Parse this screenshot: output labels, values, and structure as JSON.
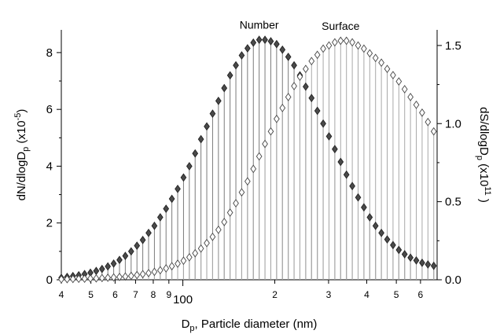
{
  "chart_data": {
    "type": "scatter",
    "subtype": "diamond-markers-with-drop-lines",
    "x_scale": "log",
    "xlim": [
      40,
      680
    ],
    "x_unit": "nm",
    "xlabel_main": "D",
    "xlabel_sub": "p",
    "xlabel_rest": ", Particle diameter (nm)",
    "x_ticks": [
      {
        "value": 40,
        "label": "4"
      },
      {
        "value": 50,
        "label": "5"
      },
      {
        "value": 60,
        "label": "6"
      },
      {
        "value": 70,
        "label": "7"
      },
      {
        "value": 80,
        "label": "8"
      },
      {
        "value": 90,
        "label": "9"
      },
      {
        "value": 100,
        "label": "100"
      },
      {
        "value": 200,
        "label": "2"
      },
      {
        "value": 300,
        "label": "3"
      },
      {
        "value": 400,
        "label": "4"
      },
      {
        "value": 500,
        "label": "5"
      },
      {
        "value": 600,
        "label": "6"
      }
    ],
    "ylim_left": [
      0,
      8.8
    ],
    "ylim_right": [
      0,
      1.6
    ],
    "y_left_ticks": [
      "0",
      "2",
      "4",
      "6",
      "8"
    ],
    "y_right_ticks": [
      "0.0",
      "0.5",
      "1.0",
      "1.5"
    ],
    "ylabel_left": {
      "a": "dN/dlogD",
      "sub": "p",
      "b": " (x10",
      "sup": "-5",
      "c": ")"
    },
    "ylabel_right": {
      "a": "dS/dlogD",
      "sub": "p",
      "b": " (x10",
      "sup": "11",
      "c": " )"
    },
    "grid": false,
    "series": [
      {
        "name": "Number",
        "axis": "left",
        "marker": "filled-diamond",
        "color": "#444444",
        "x": [
          40.0,
          41.79,
          43.66,
          45.62,
          47.67,
          49.81,
          52.04,
          54.37,
          56.81,
          59.36,
          62.02,
          64.8,
          67.71,
          70.75,
          73.92,
          77.23,
          80.7,
          84.32,
          88.1,
          92.05,
          96.18,
          100.5,
          105.0,
          109.71,
          114.63,
          119.77,
          125.14,
          130.76,
          136.62,
          142.75,
          149.15,
          155.84,
          162.83,
          170.14,
          177.77,
          185.74,
          194.07,
          202.78,
          211.87,
          221.38,
          231.31,
          241.68,
          252.52,
          263.85,
          275.68,
          288.05,
          300.97,
          314.47,
          328.57,
          343.31,
          358.71,
          374.8,
          391.61,
          409.18,
          427.53,
          446.71,
          466.74,
          487.68,
          509.55,
          532.41,
          556.29,
          581.24,
          607.31,
          634.55,
          663.01
        ],
        "y": [
          0.07,
          0.1,
          0.13,
          0.16,
          0.2,
          0.25,
          0.31,
          0.38,
          0.47,
          0.57,
          0.7,
          0.84,
          1.0,
          1.2,
          1.4,
          1.65,
          1.9,
          2.2,
          2.5,
          2.85,
          3.2,
          3.6,
          4.0,
          4.45,
          4.95,
          5.4,
          5.85,
          6.3,
          6.75,
          7.2,
          7.55,
          7.9,
          8.15,
          8.35,
          8.45,
          8.45,
          8.4,
          8.3,
          8.1,
          7.85,
          7.55,
          7.2,
          6.8,
          6.4,
          5.95,
          5.5,
          5.05,
          4.6,
          4.15,
          3.7,
          3.3,
          2.9,
          2.55,
          2.2,
          1.9,
          1.65,
          1.42,
          1.22,
          1.05,
          0.9,
          0.78,
          0.68,
          0.6,
          0.54,
          0.49
        ]
      },
      {
        "name": "Surface",
        "axis": "right",
        "marker": "open-diamond",
        "color": "#444444",
        "x": [
          40.0,
          41.79,
          43.66,
          45.62,
          47.67,
          49.81,
          52.04,
          54.37,
          56.81,
          59.36,
          62.02,
          64.8,
          67.71,
          70.75,
          73.92,
          77.23,
          80.7,
          84.32,
          88.1,
          92.05,
          96.18,
          100.5,
          105.0,
          109.71,
          114.63,
          119.77,
          125.14,
          130.76,
          136.62,
          142.75,
          149.15,
          155.84,
          162.83,
          170.14,
          177.77,
          185.74,
          194.07,
          202.78,
          211.87,
          221.38,
          231.31,
          241.68,
          252.52,
          263.85,
          275.68,
          288.05,
          300.97,
          314.47,
          328.57,
          343.31,
          358.71,
          374.8,
          391.61,
          409.18,
          427.53,
          446.71,
          466.74,
          487.68,
          509.55,
          532.41,
          556.29,
          581.24,
          607.31,
          634.55,
          663.01
        ],
        "y": [
          0.003,
          0.004,
          0.005,
          0.006,
          0.007,
          0.008,
          0.009,
          0.011,
          0.013,
          0.015,
          0.018,
          0.021,
          0.025,
          0.03,
          0.036,
          0.043,
          0.051,
          0.061,
          0.073,
          0.087,
          0.103,
          0.122,
          0.144,
          0.17,
          0.2,
          0.235,
          0.275,
          0.32,
          0.37,
          0.43,
          0.49,
          0.56,
          0.63,
          0.71,
          0.79,
          0.87,
          0.95,
          1.03,
          1.1,
          1.17,
          1.24,
          1.3,
          1.35,
          1.4,
          1.44,
          1.48,
          1.5,
          1.52,
          1.53,
          1.53,
          1.52,
          1.5,
          1.48,
          1.45,
          1.42,
          1.39,
          1.35,
          1.31,
          1.27,
          1.22,
          1.17,
          1.12,
          1.07,
          1.01,
          0.95
        ]
      }
    ]
  }
}
